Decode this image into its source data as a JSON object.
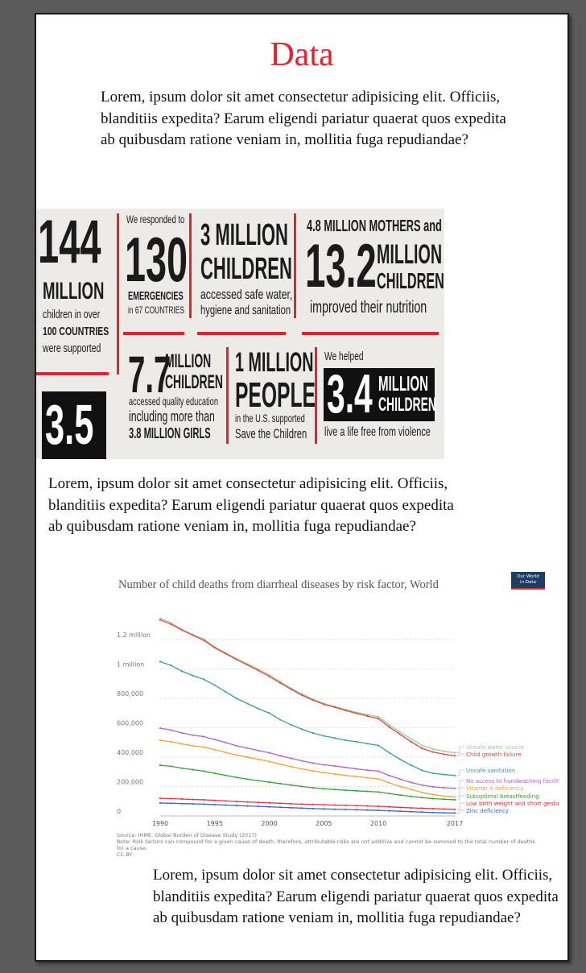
{
  "page": {
    "title": "Data",
    "paragraphs": [
      "Lorem, ipsum dolor sit amet consectetur adipisicing elit. Officiis, blanditiis expedita? Earum eligendi pariatur quaerat quos expedita ab quibusdam ratione veniam in, mollitia fuga repudiandae?",
      "Lorem, ipsum dolor sit amet consectetur adipisicing elit. Officiis, blanditiis expedita? Earum eligendi pariatur quaerat quos expedita ab quibusdam ratione veniam in, mollitia fuga repudiandae?",
      "Lorem, ipsum dolor sit amet consectetur adipisicing elit. Officiis, blanditiis expedita? Earum eligendi pariatur quaerat quos expedita ab quibusdam ratione veniam in, mollitia fuga repudiandae?"
    ]
  },
  "infographic": {
    "c1": {
      "big": "144",
      "label": "MILLION",
      "line1": "children in over",
      "line2": "100 COUNTRIES",
      "line3": "were supported",
      "bottom": "3.5"
    },
    "c2": {
      "top": "We responded to",
      "big": "130",
      "label": "EMERGENCIES",
      "sub": "in 67 COUNTRIES"
    },
    "c3": {
      "big1": "3 MILLION",
      "big2": "CHILDREN",
      "line1": "accessed safe water,",
      "line2": "hygiene and sanitation"
    },
    "c4": {
      "top": "4.8 MILLION MOTHERS and",
      "big": "13.2",
      "label1": "MILLION",
      "label2": "CHILDREN",
      "line": "improved their nutrition"
    },
    "c5": {
      "big": "7.7",
      "label1": "MILLION",
      "label2": "CHILDREN",
      "line1": "accessed quality education",
      "line2": "including more than",
      "line3": "3.8 MILLION GIRLS"
    },
    "c6": {
      "big1": "1 MILLION",
      "big2": "PEOPLE",
      "line1": "in the U.S. supported",
      "line2": "Save the Children"
    },
    "c7": {
      "top": "We helped",
      "big": "3.4",
      "label1": "MILLION",
      "label2": "CHILDREN",
      "line": "live a life free from violence"
    },
    "colors": {
      "red": "#d9272e",
      "black": "#111111",
      "background": "#ecebe8"
    }
  },
  "chart_data": {
    "type": "line",
    "title": "Number of child deaths from diarrheal diseases by risk factor, World",
    "logo": {
      "line1": "Our World",
      "line2": "in Data"
    },
    "x": [
      1990,
      1991,
      1992,
      1993,
      1994,
      1995,
      1996,
      1997,
      1998,
      1999,
      2000,
      2001,
      2002,
      2003,
      2004,
      2005,
      2006,
      2007,
      2008,
      2009,
      2010,
      2011,
      2012,
      2013,
      2014,
      2015,
      2016,
      2017
    ],
    "xticks": [
      "1990",
      "1995",
      "2000",
      "2005",
      "2010",
      "2017"
    ],
    "yticks": [
      "0",
      "200,000",
      "400,000",
      "600,000",
      "800,000",
      "1 million",
      "1.2 million"
    ],
    "ylim": [
      0,
      1360000
    ],
    "xlim": [
      1990,
      2017
    ],
    "series": [
      {
        "name": "Unsafe water source",
        "color": "#a6c79a",
        "values": [
          1345000,
          1315000,
          1270000,
          1235000,
          1205000,
          1150000,
          1110000,
          1070000,
          1035000,
          1000000,
          960000,
          915000,
          870000,
          830000,
          795000,
          765000,
          745000,
          725000,
          705000,
          690000,
          675000,
          620000,
          570000,
          525000,
          480000,
          455000,
          440000,
          430000
        ]
      },
      {
        "name": "Child growth failure",
        "color": "#d64b3c",
        "values": [
          1335000,
          1305000,
          1265000,
          1230000,
          1195000,
          1145000,
          1105000,
          1065000,
          1028000,
          990000,
          950000,
          905000,
          862000,
          822000,
          788000,
          760000,
          740000,
          718000,
          698000,
          680000,
          662000,
          605000,
          555000,
          505000,
          460000,
          435000,
          420000,
          410000
        ]
      },
      {
        "name": "Unsafe sanitation",
        "color": "#3a9e9a",
        "values": [
          1050000,
          1025000,
          985000,
          955000,
          930000,
          890000,
          845000,
          800000,
          765000,
          730000,
          700000,
          655000,
          620000,
          590000,
          565000,
          545000,
          530000,
          515000,
          505000,
          492000,
          480000,
          430000,
          385000,
          345000,
          310000,
          290000,
          282000,
          275000
        ]
      },
      {
        "name": "No access to handwashing facility",
        "color": "#a966c8",
        "values": [
          598000,
          585000,
          565000,
          550000,
          540000,
          520000,
          500000,
          478000,
          462000,
          445000,
          430000,
          410000,
          392000,
          375000,
          360000,
          348000,
          340000,
          330000,
          320000,
          312000,
          305000,
          275000,
          250000,
          228000,
          210000,
          198000,
          192000,
          188000
        ]
      },
      {
        "name": "Vitamin A deficiency",
        "color": "#f2a33a",
        "values": [
          515000,
          505000,
          490000,
          478000,
          468000,
          452000,
          432000,
          415000,
          400000,
          385000,
          370000,
          352000,
          335000,
          320000,
          306000,
          295000,
          285000,
          276000,
          268000,
          260000,
          252000,
          225000,
          200000,
          180000,
          160000,
          145000,
          135000,
          130000
        ]
      },
      {
        "name": "Suboptimal breastfeeding",
        "color": "#3c9d3c",
        "values": [
          345000,
          338000,
          325000,
          315000,
          305000,
          290000,
          276000,
          262000,
          250000,
          240000,
          230000,
          220000,
          210000,
          200000,
          192000,
          185000,
          180000,
          175000,
          171000,
          167000,
          163000,
          152000,
          142000,
          133000,
          125000,
          118000,
          114000,
          110000
        ]
      },
      {
        "name": "Low birth weight and short gestation",
        "color": "#e8343c",
        "values": [
          120000,
          118000,
          115000,
          112000,
          110000,
          106000,
          102000,
          98000,
          95000,
          92000,
          89000,
          86000,
          83000,
          80000,
          78000,
          76000,
          74000,
          72000,
          70000,
          68000,
          66000,
          62000,
          58000,
          55000,
          52000,
          49000,
          47000,
          45000
        ]
      },
      {
        "name": "Zinc deficiency",
        "color": "#3b63c8",
        "values": [
          88000,
          86000,
          84000,
          82000,
          80000,
          77000,
          74000,
          71000,
          68000,
          65000,
          62000,
          59000,
          56000,
          53000,
          50000,
          48000,
          46000,
          44000,
          42000,
          40000,
          38000,
          35000,
          32000,
          29000,
          26000,
          23000,
          21000,
          20000
        ]
      }
    ],
    "source": "Source: IHME, Global Burden of Disease Study (2017)",
    "note": "Note: Risk factors can compound for a given cause of death, therefore, attributable risks are not additive and cannot be summed to the total number of deaths for a cause.",
    "license": "CC BY"
  }
}
